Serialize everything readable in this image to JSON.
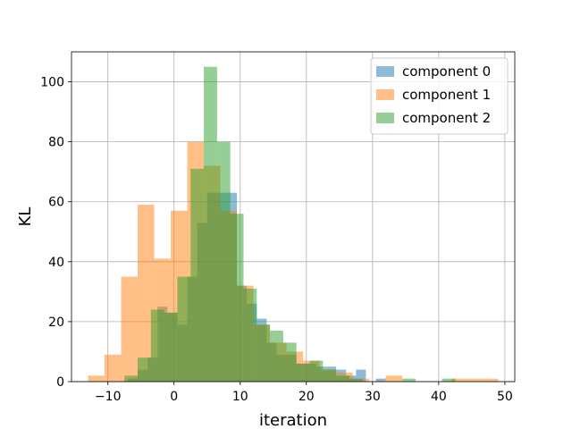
{
  "chart_data": {
    "type": "histogram",
    "title": "",
    "xlabel": "iteration",
    "ylabel": "KL",
    "xlim": [
      -15.5,
      51.5
    ],
    "ylim": [
      0,
      110
    ],
    "xticks": [
      -10,
      0,
      10,
      20,
      30,
      40,
      50
    ],
    "yticks": [
      0,
      20,
      40,
      60,
      80,
      100
    ],
    "grid": true,
    "legend_position": "top-right",
    "series": [
      {
        "name": "component 0",
        "color": "#1f77b4",
        "alpha": 0.5,
        "bins": [
          [
            -7.0,
            -5.5,
            1
          ],
          [
            -5.5,
            -4.0,
            4
          ],
          [
            -4.0,
            -2.5,
            8
          ],
          [
            -2.5,
            -1.0,
            25
          ],
          [
            -1.0,
            0.5,
            23
          ],
          [
            0.5,
            2.0,
            19
          ],
          [
            2.0,
            3.5,
            35
          ],
          [
            3.5,
            5.0,
            53
          ],
          [
            5.0,
            6.5,
            63
          ],
          [
            6.5,
            8.0,
            63
          ],
          [
            8.0,
            9.5,
            63
          ],
          [
            9.5,
            11.0,
            32
          ],
          [
            11.0,
            12.5,
            26
          ],
          [
            12.5,
            14.0,
            21
          ],
          [
            14.0,
            15.5,
            13
          ],
          [
            15.5,
            17.0,
            9
          ],
          [
            17.0,
            18.5,
            9
          ],
          [
            18.5,
            20.0,
            6
          ],
          [
            20.0,
            21.5,
            6
          ],
          [
            21.5,
            23.0,
            5
          ],
          [
            23.0,
            24.5,
            5
          ],
          [
            24.5,
            26.0,
            4
          ],
          [
            26.0,
            27.5,
            2
          ],
          [
            27.5,
            29.0,
            4
          ],
          [
            29.0,
            30.5,
            0
          ],
          [
            30.5,
            32.0,
            1
          ]
        ]
      },
      {
        "name": "component 1",
        "color": "#ff7f0e",
        "alpha": 0.5,
        "bins": [
          [
            -13.0,
            -10.5,
            2
          ],
          [
            -10.5,
            -8.0,
            9
          ],
          [
            -8.0,
            -5.5,
            35
          ],
          [
            -5.5,
            -3.0,
            59
          ],
          [
            -3.0,
            -0.5,
            41
          ],
          [
            -0.5,
            2.0,
            57
          ],
          [
            2.0,
            4.5,
            80
          ],
          [
            4.5,
            7.0,
            72
          ],
          [
            7.0,
            9.5,
            57
          ],
          [
            9.5,
            12.0,
            32
          ],
          [
            12.0,
            14.5,
            19
          ],
          [
            14.5,
            17.0,
            13
          ],
          [
            17.0,
            19.5,
            10
          ],
          [
            19.5,
            22.0,
            7
          ],
          [
            22.0,
            24.5,
            4
          ],
          [
            24.5,
            27.0,
            3
          ],
          [
            27.0,
            29.5,
            1
          ],
          [
            29.5,
            32.0,
            0
          ],
          [
            32.0,
            34.5,
            2
          ],
          [
            34.5,
            37.0,
            0
          ],
          [
            37.0,
            39.5,
            0
          ],
          [
            39.5,
            42.0,
            0
          ],
          [
            42.0,
            44.5,
            1
          ],
          [
            44.5,
            47.0,
            1
          ],
          [
            47.0,
            49.0,
            1
          ]
        ]
      },
      {
        "name": "component 2",
        "color": "#2ca02c",
        "alpha": 0.5,
        "bins": [
          [
            -7.5,
            -5.5,
            2
          ],
          [
            -5.5,
            -3.5,
            8
          ],
          [
            -3.5,
            -1.5,
            24
          ],
          [
            -1.5,
            0.5,
            23
          ],
          [
            0.5,
            2.5,
            35
          ],
          [
            2.5,
            4.5,
            71
          ],
          [
            4.5,
            6.5,
            105
          ],
          [
            6.5,
            8.5,
            80
          ],
          [
            8.5,
            10.5,
            56
          ],
          [
            10.5,
            12.5,
            31
          ],
          [
            12.5,
            14.5,
            19
          ],
          [
            14.5,
            16.5,
            17
          ],
          [
            16.5,
            18.5,
            13
          ],
          [
            18.5,
            20.5,
            6
          ],
          [
            20.5,
            22.5,
            7
          ],
          [
            22.5,
            24.5,
            4
          ],
          [
            24.5,
            26.5,
            2
          ],
          [
            26.5,
            28.5,
            1
          ],
          [
            28.5,
            30.5,
            0
          ],
          [
            30.5,
            32.5,
            0
          ],
          [
            32.5,
            34.5,
            0
          ],
          [
            34.5,
            36.5,
            1
          ],
          [
            36.5,
            38.5,
            0
          ],
          [
            38.5,
            40.5,
            0
          ],
          [
            40.5,
            42.5,
            1
          ]
        ]
      }
    ]
  }
}
